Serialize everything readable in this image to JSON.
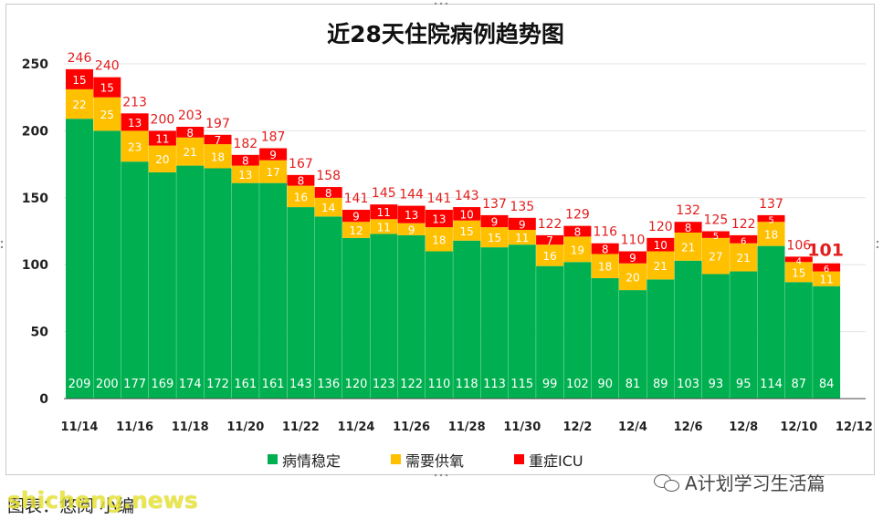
{
  "chart_data": {
    "type": "bar",
    "stacked": true,
    "title": "近28天住院病例趋势图",
    "xlabel": "",
    "ylabel": "",
    "ylim": [
      0,
      250
    ],
    "yticks": [
      0,
      50,
      100,
      150,
      200,
      250
    ],
    "grid": true,
    "legend_position": "bottom",
    "categories": [
      "11/14",
      "11/15",
      "11/16",
      "11/17",
      "11/18",
      "11/19",
      "11/20",
      "11/21",
      "11/22",
      "11/23",
      "11/24",
      "11/25",
      "11/26",
      "11/27",
      "11/28",
      "11/29",
      "11/30",
      "12/1",
      "12/2",
      "12/3",
      "12/4",
      "12/5",
      "12/6",
      "12/7",
      "12/8",
      "12/9",
      "12/10",
      "12/11"
    ],
    "xtick_labels": [
      "11/14",
      "11/16",
      "11/18",
      "11/20",
      "11/22",
      "11/24",
      "11/26",
      "11/28",
      "11/30",
      "12/2",
      "12/4",
      "12/6",
      "12/8",
      "12/10",
      "12/12"
    ],
    "series": [
      {
        "name": "病情稳定",
        "color": "#00b050",
        "values": [
          209,
          200,
          177,
          169,
          174,
          172,
          161,
          161,
          143,
          136,
          120,
          123,
          122,
          110,
          118,
          113,
          115,
          99,
          102,
          90,
          81,
          89,
          103,
          93,
          95,
          114,
          87,
          84
        ]
      },
      {
        "name": "需要供氧",
        "color": "#ffc000",
        "values": [
          22,
          25,
          23,
          20,
          21,
          18,
          13,
          17,
          16,
          14,
          12,
          11,
          9,
          18,
          15,
          15,
          11,
          16,
          19,
          18,
          20,
          21,
          21,
          27,
          21,
          18,
          15,
          11
        ]
      },
      {
        "name": "重症ICU",
        "color": "#ff0000",
        "values": [
          15,
          15,
          13,
          11,
          8,
          7,
          8,
          9,
          8,
          8,
          9,
          11,
          13,
          13,
          10,
          9,
          9,
          7,
          8,
          8,
          9,
          10,
          8,
          5,
          6,
          5,
          4,
          6
        ]
      }
    ],
    "totals": [
      246,
      240,
      213,
      200,
      203,
      197,
      182,
      187,
      167,
      158,
      141,
      145,
      144,
      141,
      143,
      137,
      135,
      122,
      129,
      116,
      110,
      120,
      132,
      125,
      122,
      137,
      106,
      101
    ],
    "total_label_color": "#e31c1c",
    "highlight_last_total": true
  },
  "footer": {
    "source": "图表：悠阅 小编",
    "watermark": "shicheng.news",
    "brand": "A计划学习生活篇"
  }
}
